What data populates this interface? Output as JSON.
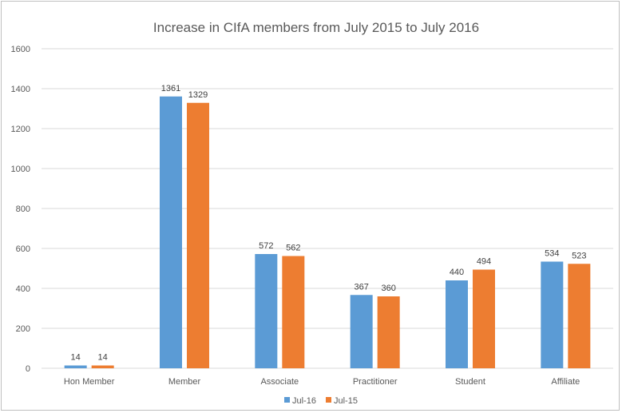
{
  "chart_data": {
    "type": "bar",
    "title": "Increase in CIfA members from July 2015 to July 2016",
    "xlabel": "",
    "ylabel": "",
    "categories": [
      "Hon Member",
      "Member",
      "Associate",
      "Practitioner",
      "Student",
      "Affiliate"
    ],
    "series": [
      {
        "name": "Jul-16",
        "color": "#5b9bd5",
        "values": [
          14,
          1361,
          572,
          367,
          440,
          534
        ]
      },
      {
        "name": "Jul-15",
        "color": "#ed7d31",
        "values": [
          14,
          1329,
          562,
          360,
          494,
          523
        ]
      }
    ],
    "ylim": [
      0,
      1600
    ],
    "yticks": [
      0,
      200,
      400,
      600,
      800,
      1000,
      1200,
      1400,
      1600
    ],
    "grid": true,
    "legend_position": "bottom",
    "data_labels": true
  }
}
